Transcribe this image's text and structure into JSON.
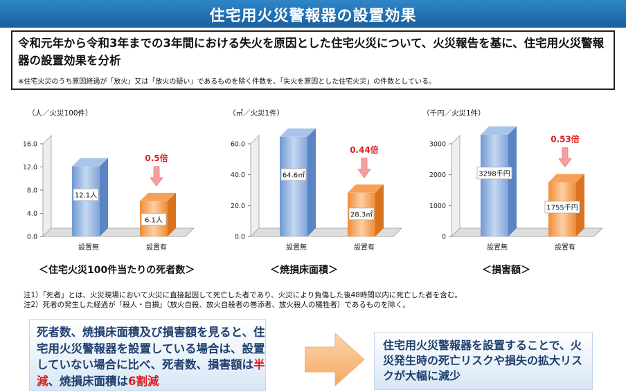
{
  "title": "住宅用火災警報器の設置効果",
  "summary": {
    "text": "令和元年から令和3年までの3年間における失火を原因とした住宅火災について、火災報告を基に、住宅用火災警報器の設置効果を分析",
    "note": "※住宅火災のうち原因経過が「放火」又は「放火の疑い」であるものを除く件数を、「失火を原因とした住宅火災」の件数としている。"
  },
  "chart_data": [
    {
      "type": "bar",
      "unit_label": "（人／火災100件）",
      "categories": [
        "設置無",
        "設置有"
      ],
      "values": [
        12.1,
        6.1
      ],
      "value_labels": [
        "12.1人",
        "6.1人"
      ],
      "ratio_label": "0.5倍",
      "yticks": [
        "0.0",
        "4.0",
        "8.0",
        "12.0",
        "16.0"
      ],
      "ylim": [
        0,
        16
      ],
      "title": "＜住宅火災100件当たりの死者数＞"
    },
    {
      "type": "bar",
      "unit_label": "（㎡／火災1件）",
      "categories": [
        "設置無",
        "設置有"
      ],
      "values": [
        64.6,
        28.3
      ],
      "value_labels": [
        "64.6㎡",
        "28.3㎡"
      ],
      "ratio_label": "0.44倍",
      "yticks": [
        "0.0",
        "20.0",
        "40.0",
        "60.0"
      ],
      "ylim": [
        0,
        60
      ],
      "title": "＜焼損床面積＞"
    },
    {
      "type": "bar",
      "unit_label": "（千円／火災1件）",
      "categories": [
        "設置無",
        "設置有"
      ],
      "values": [
        3298,
        1755
      ],
      "value_labels": [
        "3298千円",
        "1755千円"
      ],
      "ratio_label": "0.53倍",
      "yticks": [
        "0",
        "1000",
        "2000",
        "3000"
      ],
      "ylim": [
        0,
        3000
      ],
      "title": "＜損害額＞"
    }
  ],
  "notes": [
    "注1）「死者」とは、火災現場において火災に直接起因して死亡した者であり、火災により負傷した後48時間以内に死亡した者を含む。",
    "注2）死者の発生した経過が「殺人・自損」（放火自殺、放火自殺者の巻添者、放火殺人の犠牲者）であるものを除く。"
  ],
  "conclusion_left": {
    "part1": "死者数、焼損床面積及び損害額を見ると、住宅用火災警報器を設置している場合は、設置していない場合に比べ、死者数、損害額は",
    "red1": "半減",
    "part2": "、焼損床面積は",
    "red2": "6割減"
  },
  "conclusion_right": "住宅用火災警報器を設置することで、火災発生時の死亡リスクや損失の拡大リスクが大幅に減少",
  "colors": {
    "blue_bar": "#8eb4e3",
    "orange_bar": "#f79646",
    "red": "#e02020",
    "title_bg": "#1f6fb3"
  }
}
